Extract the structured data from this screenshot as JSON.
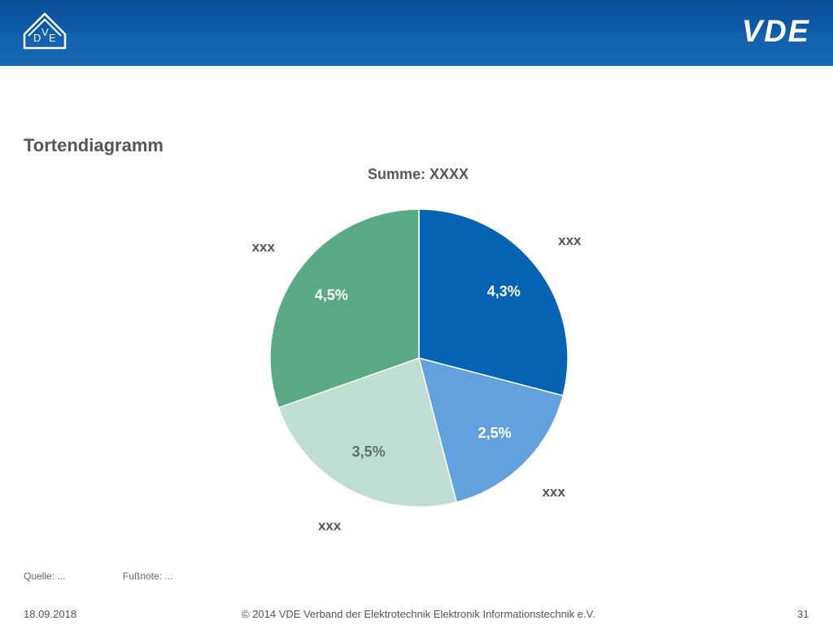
{
  "header": {
    "brand": "VDE",
    "emblem_letters": [
      "D",
      "V",
      "E"
    ],
    "colors": {
      "bar": "#0d5aa8"
    }
  },
  "slide": {
    "title": "Tortendiagramm"
  },
  "chart_data": {
    "type": "pie",
    "title": "Summe: XXXX",
    "categories": [
      "xxx",
      "xxx",
      "xxx",
      "xxx"
    ],
    "values": [
      4.3,
      2.5,
      3.5,
      4.5
    ],
    "value_labels": [
      "4,3%",
      "2,5%",
      "3,5%",
      "4,5%"
    ],
    "colors": [
      "#0563b4",
      "#62a0de",
      "#bfddd0",
      "#58a984"
    ],
    "start": "12 o'clock, clockwise",
    "legend": "none"
  },
  "notes": {
    "source": "Quelle: ...",
    "footnote": "Fußnote: ..."
  },
  "footer": {
    "date": "18.09.2018",
    "copyright": "© 2014 VDE Verband der Elektrotechnik Elektronik Informationstechnik e.V.",
    "page": "31"
  }
}
